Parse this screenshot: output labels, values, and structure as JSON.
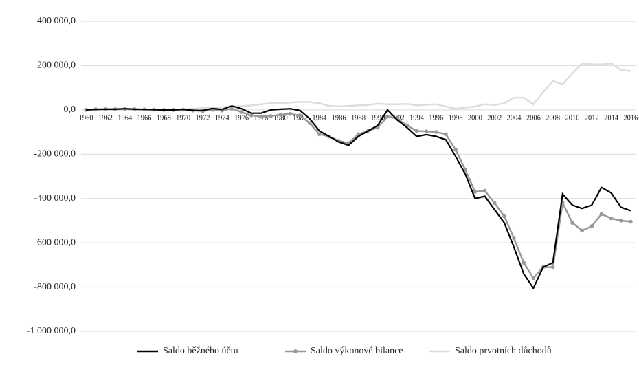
{
  "chart_data": {
    "type": "line",
    "categories": [
      "1960",
      null,
      "1962",
      null,
      "1964",
      null,
      "1966",
      null,
      "1968",
      null,
      "1970",
      null,
      "1972",
      null,
      "1974",
      null,
      "1976",
      null,
      "1978",
      null,
      "1980",
      null,
      "1982",
      null,
      "1984",
      null,
      "1986",
      null,
      "1988",
      null,
      "1990",
      null,
      "1992",
      null,
      "1994",
      null,
      "1996",
      null,
      "1998",
      null,
      "2000",
      null,
      "2002",
      null,
      "2004",
      null,
      "2006",
      null,
      "2008",
      null,
      "2010",
      null,
      "2012",
      null,
      "2014",
      null,
      "2016"
    ],
    "series": [
      {
        "name": "Saldo běžného účtu",
        "color": "#000000",
        "markers": false,
        "values": [
          0,
          2000,
          3000,
          3000,
          5000,
          3000,
          2000,
          1000,
          0,
          0,
          2000,
          -2000,
          -3000,
          6000,
          2000,
          18000,
          5000,
          -15000,
          -15000,
          0,
          3000,
          5000,
          -3000,
          -40000,
          -95000,
          -120000,
          -145000,
          -160000,
          -120000,
          -95000,
          -70000,
          0,
          -45000,
          -80000,
          -120000,
          -112000,
          -120000,
          -135000,
          -210000,
          -290000,
          -400000,
          -390000,
          -450000,
          -510000,
          -620000,
          -740000,
          -805000,
          -710000,
          -690000,
          -380000,
          -430000,
          -445000,
          -430000,
          -350000,
          -375000,
          -440000,
          -455000
        ]
      },
      {
        "name": "Saldo výkonové bilance",
        "color": "#999999",
        "markers": true,
        "values": [
          0,
          3000,
          3000,
          3000,
          5000,
          3000,
          2000,
          1000,
          0,
          0,
          1000,
          -3000,
          -5000,
          0,
          -3000,
          5000,
          -10000,
          -25000,
          -30000,
          -28000,
          -22000,
          -18000,
          -25000,
          -60000,
          -110000,
          -120000,
          -140000,
          -150000,
          -110000,
          -95000,
          -80000,
          -30000,
          -40000,
          -70000,
          -95000,
          -97000,
          -100000,
          -110000,
          -180000,
          -270000,
          -370000,
          -365000,
          -420000,
          -480000,
          -580000,
          -690000,
          -760000,
          -710000,
          -710000,
          -420000,
          -510000,
          -545000,
          -525000,
          -470000,
          -490000,
          -500000,
          -505000
        ]
      },
      {
        "name": "Saldo prvotních důchodů",
        "color": "#dddddd",
        "markers": false,
        "values": [
          0,
          0,
          0,
          0,
          0,
          0,
          0,
          0,
          0,
          0,
          2000,
          5000,
          8000,
          10000,
          12000,
          15000,
          17000,
          20000,
          25000,
          30000,
          30000,
          33000,
          36000,
          35000,
          30000,
          18000,
          15000,
          18000,
          20000,
          22000,
          28000,
          25000,
          25000,
          27000,
          20000,
          23000,
          25000,
          15000,
          5000,
          10000,
          15000,
          25000,
          22000,
          30000,
          55000,
          55000,
          25000,
          80000,
          130000,
          115000,
          165000,
          210000,
          205000,
          205000,
          210000,
          180000,
          175000
        ]
      }
    ],
    "ylim": [
      -1000000,
      400000
    ],
    "yticks": [
      {
        "value": -1000000,
        "label": "-1 000 000,0"
      },
      {
        "value": -800000,
        "label": "-800 000,0"
      },
      {
        "value": -600000,
        "label": "-600 000,0"
      },
      {
        "value": -400000,
        "label": "-400 000,0"
      },
      {
        "value": -200000,
        "label": "-200 000,0"
      },
      {
        "value": 0,
        "label": "0,0"
      },
      {
        "value": 200000,
        "label": "200 000,0"
      },
      {
        "value": 400000,
        "label": "400 000,0"
      }
    ],
    "grid": true,
    "legend": "bottom"
  }
}
